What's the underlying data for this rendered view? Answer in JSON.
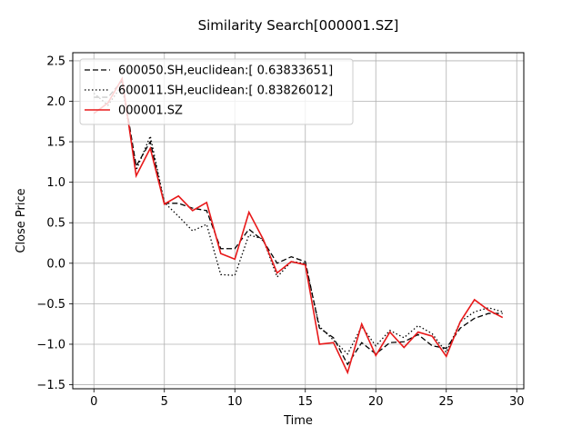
{
  "chart_data": {
    "type": "line",
    "title": "Similarity Search[000001.SZ]",
    "xlabel": "Time",
    "ylabel": "Close Price",
    "xlim": [
      -1.5,
      30.5
    ],
    "ylim": [
      -1.55,
      2.6
    ],
    "xticks": [
      0,
      5,
      10,
      15,
      20,
      25,
      30
    ],
    "xtick_labels": [
      "0",
      "5",
      "10",
      "15",
      "20",
      "25",
      "30"
    ],
    "yticks": [
      -1.5,
      -1.0,
      -0.5,
      0.0,
      0.5,
      1.0,
      1.5,
      2.0,
      2.5
    ],
    "ytick_labels": [
      "−1.5",
      "−1.0",
      "−0.5",
      "0.0",
      "0.5",
      "1.0",
      "1.5",
      "2.0",
      "2.5"
    ],
    "grid": true,
    "legend_position": "top-left",
    "x": [
      0,
      1,
      2,
      3,
      4,
      5,
      6,
      7,
      8,
      9,
      10,
      11,
      12,
      13,
      14,
      15,
      16,
      17,
      18,
      19,
      20,
      21,
      22,
      23,
      24,
      25,
      26,
      27,
      28,
      29
    ],
    "series": [
      {
        "name": "600050.SH,euclidean:[ 0.63833651]",
        "style": "dashed",
        "color": "#000000",
        "values": [
          2.05,
          2.05,
          2.25,
          1.2,
          1.5,
          0.74,
          0.74,
          0.68,
          0.65,
          0.18,
          0.18,
          0.42,
          0.28,
          0.0,
          0.08,
          0.02,
          -0.8,
          -0.92,
          -1.25,
          -0.98,
          -1.12,
          -0.98,
          -0.97,
          -0.88,
          -1.02,
          -1.05,
          -0.8,
          -0.68,
          -0.62,
          -0.62
        ]
      },
      {
        "name": "600011.SH,euclidean:[ 0.83826012]",
        "style": "dotted",
        "color": "#000000",
        "values": [
          2.1,
          1.95,
          2.2,
          1.15,
          1.57,
          0.75,
          0.58,
          0.4,
          0.48,
          -0.14,
          -0.15,
          0.35,
          0.3,
          -0.17,
          0.02,
          0.0,
          -0.78,
          -0.95,
          -1.12,
          -0.78,
          -1.02,
          -0.83,
          -0.92,
          -0.77,
          -0.87,
          -1.1,
          -0.72,
          -0.6,
          -0.55,
          -0.6
        ]
      },
      {
        "name": "000001.SZ",
        "style": "solid",
        "color": "#e8191a",
        "values": [
          1.85,
          1.98,
          2.28,
          1.08,
          1.42,
          0.73,
          0.83,
          0.65,
          0.75,
          0.12,
          0.05,
          0.63,
          0.3,
          -0.12,
          0.02,
          -0.02,
          -1.0,
          -0.98,
          -1.35,
          -0.75,
          -1.14,
          -0.85,
          -1.04,
          -0.85,
          -0.9,
          -1.15,
          -0.72,
          -0.45,
          -0.58,
          -0.67
        ]
      }
    ]
  }
}
